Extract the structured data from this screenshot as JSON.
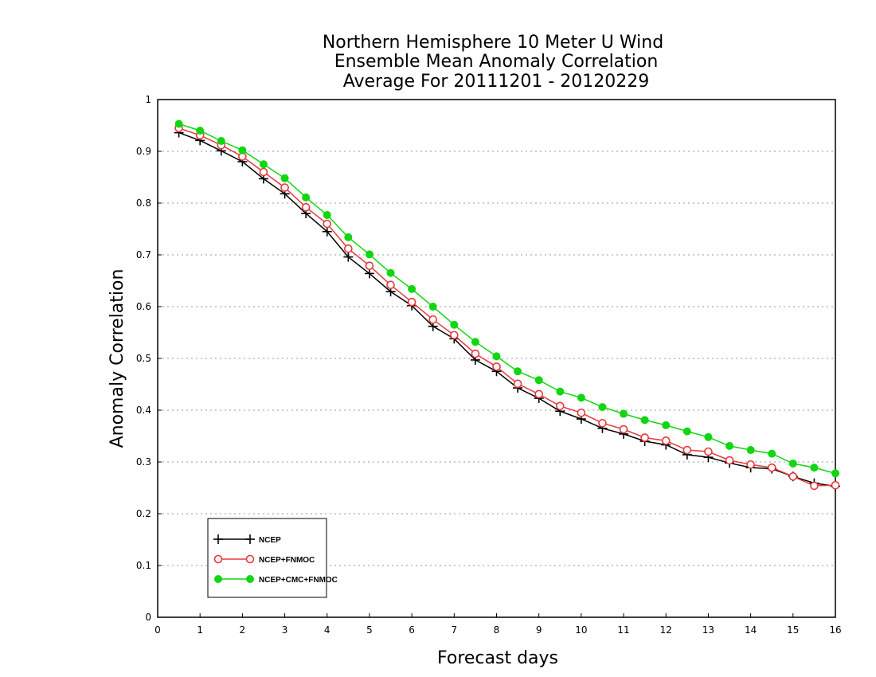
{
  "chart_data": {
    "type": "line",
    "title": [
      "Northern Hemisphere 10 Meter U Wind",
      "Ensemble Mean Anomaly Correlation",
      "Average For 20111201 - 20120229"
    ],
    "xlabel": "Forecast days",
    "ylabel": "Anomaly Correlation",
    "xlim": [
      0,
      16
    ],
    "ylim": [
      0,
      1
    ],
    "xticks": [
      0,
      1,
      2,
      3,
      4,
      5,
      6,
      7,
      8,
      9,
      10,
      11,
      12,
      13,
      14,
      15,
      16
    ],
    "yticks": [
      0,
      0.1,
      0.2,
      0.3,
      0.4,
      0.5,
      0.6,
      0.7,
      0.8,
      0.9,
      1
    ],
    "grid": "horizontal dotted",
    "legend_position": "bottom-left",
    "x": [
      0.5,
      1,
      1.5,
      2,
      2.5,
      3,
      3.5,
      4,
      4.5,
      5,
      5.5,
      6,
      6.5,
      7,
      7.5,
      8,
      8.5,
      9,
      9.5,
      10,
      10.5,
      11,
      11.5,
      12,
      12.5,
      13,
      13.5,
      14,
      14.5,
      15,
      15.5,
      16
    ],
    "series": [
      {
        "name": "NCEP",
        "color": "#000000",
        "marker": "plus",
        "values": [
          0.936,
          0.921,
          0.901,
          0.88,
          0.847,
          0.818,
          0.78,
          0.745,
          0.696,
          0.664,
          0.629,
          0.602,
          0.562,
          0.538,
          0.497,
          0.475,
          0.443,
          0.423,
          0.398,
          0.383,
          0.365,
          0.354,
          0.34,
          0.333,
          0.314,
          0.309,
          0.298,
          0.289,
          0.287,
          0.272,
          0.259,
          0.253
        ]
      },
      {
        "name": "NCEP+FNMOC",
        "color": "#e8383d",
        "marker": "open-circle",
        "values": [
          0.945,
          0.931,
          0.912,
          0.89,
          0.86,
          0.83,
          0.792,
          0.76,
          0.712,
          0.679,
          0.642,
          0.609,
          0.575,
          0.545,
          0.509,
          0.484,
          0.451,
          0.431,
          0.408,
          0.395,
          0.375,
          0.363,
          0.347,
          0.341,
          0.323,
          0.32,
          0.303,
          0.295,
          0.289,
          0.272,
          0.254,
          0.255
        ]
      },
      {
        "name": "NCEP+CMC+FNMOC",
        "color": "#11d611",
        "marker": "filled-circle",
        "values": [
          0.953,
          0.94,
          0.92,
          0.902,
          0.875,
          0.848,
          0.811,
          0.777,
          0.734,
          0.701,
          0.665,
          0.634,
          0.6,
          0.565,
          0.532,
          0.504,
          0.475,
          0.458,
          0.436,
          0.424,
          0.406,
          0.393,
          0.381,
          0.371,
          0.359,
          0.348,
          0.331,
          0.323,
          0.316,
          0.297,
          0.289,
          0.278
        ]
      }
    ]
  }
}
